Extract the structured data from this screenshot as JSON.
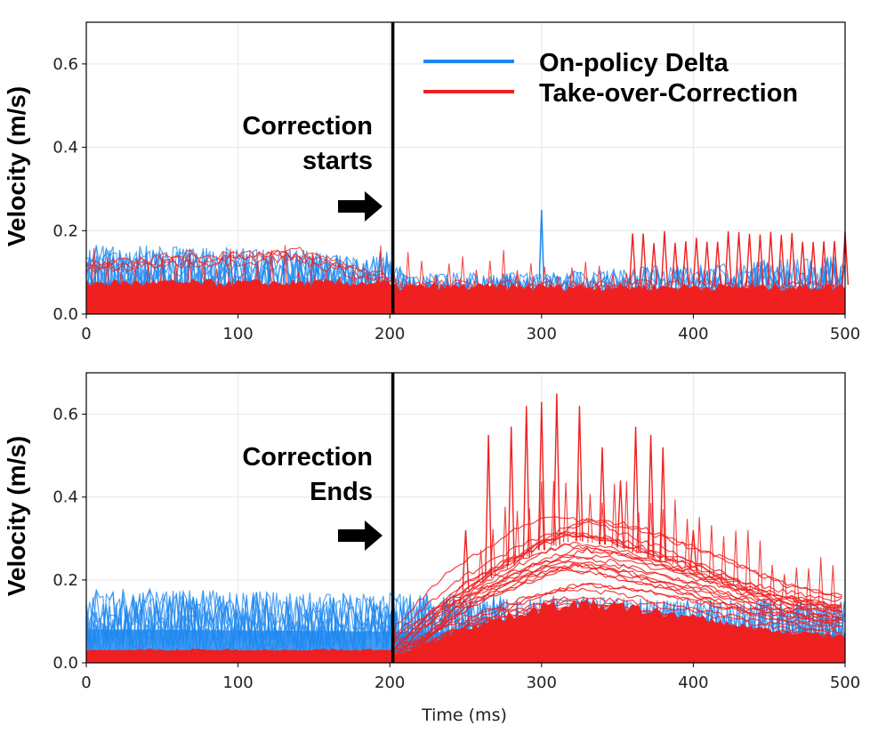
{
  "chart_data": [
    {
      "type": "line",
      "panel": "top",
      "ylabel": "Velocity (m/s)",
      "xlabel": "",
      "xlim": [
        0,
        500
      ],
      "ylim": [
        0,
        0.7
      ],
      "xticks": [
        "0",
        "100",
        "200",
        "300",
        "400",
        "500"
      ],
      "yticks": [
        "0.0",
        "0.2",
        "0.4",
        "0.6"
      ],
      "grid": true,
      "vline_x": 202,
      "annotation": [
        "Correction",
        "starts"
      ],
      "legend": {
        "placement": "top-right",
        "entries": [
          "On-policy Delta",
          "Take-over-Correction"
        ]
      },
      "series": [
        {
          "name": "On-policy Delta",
          "color": "#1e88f0",
          "description": "many overlapping trials; noisy band 0.0–0.19 before t=200, 0.0–0.1 after, isolated spike 0.25 at t=300",
          "envelope": {
            "x": [
              0,
              200,
              210,
              300,
              500
            ],
            "upper": [
              0.17,
              0.15,
              0.1,
              0.1,
              0.14
            ]
          },
          "spikes": [
            {
              "x": 300,
              "y": 0.25
            }
          ]
        },
        {
          "name": "Take-over-Correction",
          "color": "#f02020",
          "description": "dense band 0.0–0.08, mean trace ~0.13 before t=200, ~0.07 after, periodic spikes to ~0.2 from t=360 to 500",
          "mean": {
            "x": [
              0,
              60,
              140,
              200,
              210,
              300,
              500
            ],
            "y": [
              0.12,
              0.14,
              0.15,
              0.09,
              0.07,
              0.07,
              0.07
            ]
          },
          "spikes_range": {
            "x": [
              360,
              500
            ],
            "y": 0.2
          }
        }
      ]
    },
    {
      "type": "line",
      "panel": "bottom",
      "ylabel": "Velocity (m/s)",
      "xlabel": "Time (ms)",
      "xlim": [
        0,
        500
      ],
      "ylim": [
        0,
        0.7
      ],
      "xticks": [
        "0",
        "100",
        "200",
        "300",
        "400",
        "500"
      ],
      "yticks": [
        "0.0",
        "0.2",
        "0.4",
        "0.6"
      ],
      "grid": true,
      "vline_x": 202,
      "annotation": [
        "Correction",
        "Ends"
      ],
      "series": [
        {
          "name": "On-policy Delta",
          "color": "#1e88f0",
          "description": "noisy band 0.0–0.18 throughout",
          "envelope": {
            "x": [
              0,
              500
            ],
            "upper": [
              0.18,
              0.15
            ]
          }
        },
        {
          "name": "Take-over-Correction",
          "color": "#f02020",
          "description": "near zero (~0.03) until t=200, then rises to a hump peaking ~0.37 at t≈320, decays to ~0.15 at t=500; spikes up to 0.65 between t=260 and 380",
          "hump": {
            "x": [
              200,
              250,
              300,
              320,
              350,
              400,
              450,
              500
            ],
            "y": [
              0.02,
              0.22,
              0.34,
              0.37,
              0.35,
              0.28,
              0.2,
              0.16
            ]
          },
          "spikes": [
            {
              "x": 250,
              "y": 0.32
            },
            {
              "x": 265,
              "y": 0.55
            },
            {
              "x": 280,
              "y": 0.57
            },
            {
              "x": 290,
              "y": 0.62
            },
            {
              "x": 300,
              "y": 0.63
            },
            {
              "x": 310,
              "y": 0.65
            },
            {
              "x": 325,
              "y": 0.62
            },
            {
              "x": 340,
              "y": 0.52
            },
            {
              "x": 352,
              "y": 0.44
            },
            {
              "x": 362,
              "y": 0.57
            },
            {
              "x": 372,
              "y": 0.55
            },
            {
              "x": 380,
              "y": 0.52
            },
            {
              "x": 400,
              "y": 0.32
            }
          ]
        }
      ]
    }
  ]
}
